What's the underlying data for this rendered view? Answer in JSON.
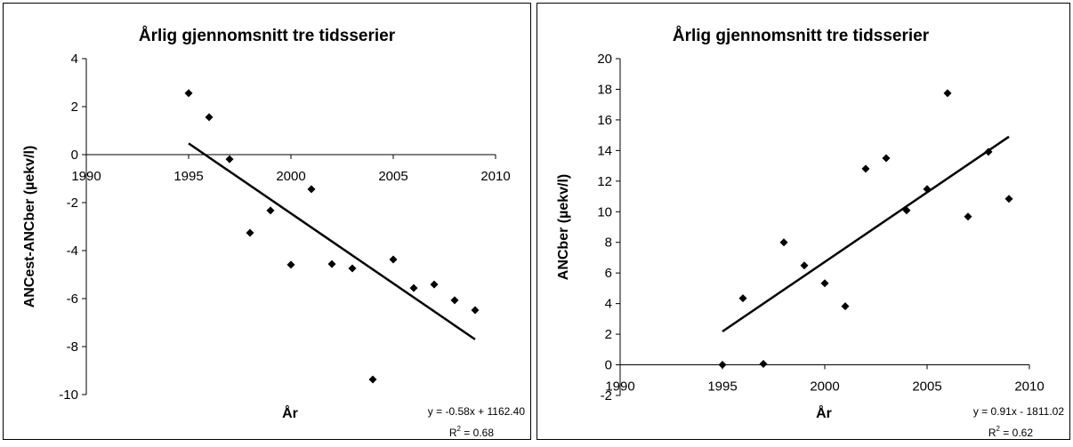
{
  "chart_data": [
    {
      "type": "scatter",
      "title": "Årlig gjennomsnitt tre tidsserier",
      "x_label": "År",
      "y_label": "ANCest-ANCber (µekv/l)",
      "x": [
        1995,
        1996,
        1997,
        1998,
        1999,
        2000,
        2001,
        2002,
        2003,
        2004,
        2005,
        2006,
        2007,
        2008,
        2009
      ],
      "values": [
        2.56,
        1.56,
        -0.19,
        -3.26,
        -2.33,
        -4.59,
        -1.44,
        -4.56,
        -4.74,
        -9.37,
        -4.37,
        -5.56,
        -5.41,
        -6.07,
        -6.48
      ],
      "color": "#000000",
      "xlim": [
        1990,
        2010
      ],
      "ylim": [
        -10,
        4
      ],
      "xticks": [
        1990,
        1995,
        2000,
        2005,
        2010
      ],
      "yticks": [
        -10,
        -8,
        -6,
        -4,
        -2,
        0,
        2,
        4
      ],
      "trendline": true,
      "trendline_equation": "y = -0.58x + 1162.40",
      "r2_label": "R",
      "r2_exponent": "2",
      "r2_text": " = 0.68"
    },
    {
      "type": "scatter",
      "title": "Årlig gjennomsnitt tre tidsserier",
      "x_label": "År",
      "y_label": "ANCber (µekv/l)",
      "x": [
        1995,
        1996,
        1997,
        1998,
        1999,
        2000,
        2001,
        2002,
        2003,
        2004,
        2005,
        2006,
        2007,
        2008,
        2009
      ],
      "values": [
        0,
        4.35,
        0.06,
        8.0,
        6.49,
        5.33,
        3.83,
        12.81,
        13.5,
        10.09,
        11.48,
        17.74,
        9.68,
        13.91,
        10.84
      ],
      "color": "#000000",
      "xlim": [
        1990,
        2010
      ],
      "ylim": [
        -2,
        20
      ],
      "xticks": [
        1990,
        1995,
        2000,
        2005,
        2010
      ],
      "yticks": [
        -2,
        0,
        2,
        4,
        6,
        8,
        10,
        12,
        14,
        16,
        18,
        20
      ],
      "trendline": true,
      "trendline_equation": "y = 0.91x - 1811.02",
      "r2_label": "R",
      "r2_exponent": "2",
      "r2_text": " = 0.62"
    }
  ]
}
